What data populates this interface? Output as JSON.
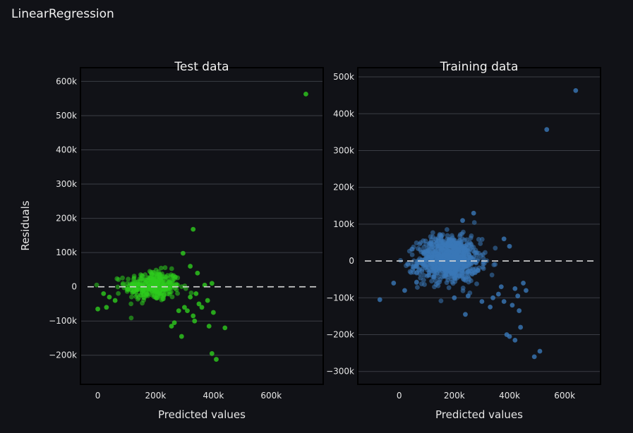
{
  "figure_title": "LinearRegression",
  "chart_data": [
    {
      "type": "scatter",
      "title": "Test data",
      "xlabel": "Predicted values",
      "ylabel": "Residuals",
      "color": "#2ecc1e",
      "xlim": [
        -60000,
        780000
      ],
      "ylim": [
        -285000,
        640000
      ],
      "xticks": [
        0,
        200000,
        400000,
        600000
      ],
      "xtick_labels": [
        "0",
        "200k",
        "400k",
        "600k"
      ],
      "yticks": [
        -200000,
        -100000,
        0,
        100000,
        200000,
        300000,
        400000,
        500000,
        600000
      ],
      "ytick_labels": [
        "−200k",
        "−100k",
        "0",
        "100k",
        "200k",
        "300k",
        "400k",
        "500k",
        "600k"
      ],
      "reference_line": 0,
      "cluster": {
        "x_center": 190000,
        "x_spread": 60000,
        "y_spread": 22000,
        "count": 320
      },
      "points": [
        [
          720000,
          563000
        ],
        [
          330000,
          168000
        ],
        [
          295000,
          98000
        ],
        [
          395000,
          -195000
        ],
        [
          410000,
          -212000
        ],
        [
          440000,
          -120000
        ],
        [
          385000,
          -115000
        ],
        [
          290000,
          -145000
        ],
        [
          255000,
          -115000
        ],
        [
          265000,
          -105000
        ],
        [
          330000,
          -85000
        ],
        [
          360000,
          -60000
        ],
        [
          380000,
          -40000
        ],
        [
          395000,
          10000
        ],
        [
          345000,
          40000
        ],
        [
          320000,
          60000
        ],
        [
          300000,
          -60000
        ],
        [
          310000,
          -70000
        ],
        [
          280000,
          -70000
        ],
        [
          320000,
          -30000
        ],
        [
          350000,
          -50000
        ],
        [
          340000,
          -20000
        ],
        [
          0,
          -65000
        ],
        [
          30000,
          -60000
        ],
        [
          60000,
          -40000
        ],
        [
          40000,
          -30000
        ],
        [
          20000,
          -20000
        ],
        [
          370000,
          5000
        ],
        [
          335000,
          -100000
        ],
        [
          400000,
          -75000
        ]
      ]
    },
    {
      "type": "scatter",
      "title": "Training data",
      "xlabel": "Predicted values",
      "ylabel": "",
      "color": "#3a78b8",
      "xlim": [
        -150000,
        730000
      ],
      "ylim": [
        -335000,
        525000
      ],
      "xticks": [
        0,
        200000,
        400000,
        600000
      ],
      "xtick_labels": [
        "0",
        "200k",
        "400k",
        "600k"
      ],
      "yticks": [
        -300000,
        -200000,
        -100000,
        0,
        100000,
        200000,
        300000,
        400000,
        500000
      ],
      "ytick_labels": [
        "−300k",
        "−200k",
        "−100k",
        "0",
        "100k",
        "200k",
        "300k",
        "400k",
        "500k"
      ],
      "reference_line": 0,
      "cluster": {
        "x_center": 180000,
        "x_spread": 70000,
        "y_spread": 30000,
        "count": 900
      },
      "points": [
        [
          640000,
          463000
        ],
        [
          535000,
          357000
        ],
        [
          -70000,
          -105000
        ],
        [
          490000,
          -260000
        ],
        [
          510000,
          -245000
        ],
        [
          440000,
          -180000
        ],
        [
          420000,
          -215000
        ],
        [
          400000,
          -205000
        ],
        [
          390000,
          -200000
        ],
        [
          435000,
          -135000
        ],
        [
          410000,
          -120000
        ],
        [
          380000,
          -110000
        ],
        [
          240000,
          -145000
        ],
        [
          330000,
          -125000
        ],
        [
          460000,
          -80000
        ],
        [
          420000,
          -75000
        ],
        [
          360000,
          -90000
        ],
        [
          300000,
          -110000
        ],
        [
          270000,
          130000
        ],
        [
          230000,
          110000
        ],
        [
          380000,
          60000
        ],
        [
          400000,
          40000
        ],
        [
          -20000,
          -60000
        ],
        [
          20000,
          -80000
        ],
        [
          340000,
          -100000
        ],
        [
          250000,
          -95000
        ],
        [
          200000,
          -100000
        ],
        [
          430000,
          -95000
        ],
        [
          450000,
          -60000
        ],
        [
          370000,
          -70000
        ]
      ]
    }
  ]
}
